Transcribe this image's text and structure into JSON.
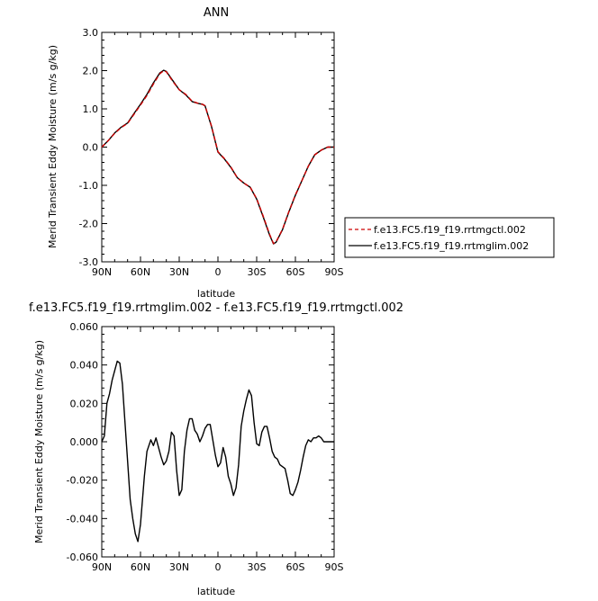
{
  "chart_data": [
    {
      "type": "line",
      "title": "ANN",
      "xlabel": "latitude",
      "ylabel": "Merid Transient Eddy Moisture  (m/s g/kg)",
      "x_ticks": [
        "90N",
        "60N",
        "30N",
        "0",
        "30S",
        "60S",
        "90S"
      ],
      "y_ticks": [
        "3.0",
        "2.0",
        "1.0",
        "0.0",
        "-1.0",
        "-2.0",
        "-3.0"
      ],
      "xlim": [
        90,
        -90
      ],
      "ylim": [
        -3.0,
        3.0
      ],
      "legend_position": "right",
      "x": [
        90,
        85,
        80,
        75,
        70,
        65,
        60,
        55,
        50,
        45,
        42,
        40,
        35,
        30,
        25,
        20,
        15,
        12,
        10,
        5,
        0,
        -5,
        -10,
        -15,
        -20,
        -25,
        -30,
        -35,
        -40,
        -43,
        -45,
        -50,
        -55,
        -60,
        -65,
        -70,
        -75,
        -80,
        -85,
        -90
      ],
      "series": [
        {
          "name": "f.e13.FC5.f19_f19.rrtmgctl.002",
          "color": "#cc0000",
          "dash": "dashed",
          "values": [
            0.0,
            0.17,
            0.36,
            0.51,
            0.62,
            0.86,
            1.1,
            1.35,
            1.65,
            1.92,
            2.0,
            1.97,
            1.72,
            1.5,
            1.38,
            1.2,
            1.14,
            1.12,
            1.08,
            0.55,
            -0.12,
            -0.3,
            -0.52,
            -0.8,
            -0.94,
            -1.05,
            -1.35,
            -1.8,
            -2.28,
            -2.52,
            -2.48,
            -2.15,
            -1.68,
            -1.25,
            -0.88,
            -0.5,
            -0.2,
            -0.08,
            0.0,
            0.0
          ]
        },
        {
          "name": "f.e13.FC5.f19_f19.rrtmglim.002",
          "color": "#000000",
          "dash": "solid",
          "values": [
            0.0,
            0.17,
            0.37,
            0.52,
            0.63,
            0.88,
            1.12,
            1.38,
            1.68,
            1.94,
            2.01,
            1.98,
            1.74,
            1.5,
            1.37,
            1.19,
            1.14,
            1.12,
            1.08,
            0.54,
            -0.13,
            -0.31,
            -0.53,
            -0.8,
            -0.94,
            -1.05,
            -1.36,
            -1.82,
            -2.3,
            -2.53,
            -2.49,
            -2.16,
            -1.69,
            -1.26,
            -0.88,
            -0.5,
            -0.2,
            -0.08,
            0.0,
            0.0
          ]
        }
      ]
    },
    {
      "type": "line",
      "title": "f.e13.FC5.f19_f19.rrtmglim.002 - f.e13.FC5.f19_f19.rrtmgctl.002",
      "xlabel": "latitude",
      "ylabel": "Merid Transient Eddy Moisture  (m/s g/kg)",
      "x_ticks": [
        "90N",
        "60N",
        "30N",
        "0",
        "30S",
        "60S",
        "90S"
      ],
      "y_ticks": [
        "0.060",
        "0.040",
        "0.020",
        "0.000",
        "-0.020",
        "-0.040",
        "-0.060"
      ],
      "xlim": [
        90,
        -90
      ],
      "ylim": [
        -0.06,
        0.06
      ],
      "x": [
        90,
        88,
        86,
        84,
        82,
        80,
        78,
        76,
        74,
        72,
        70,
        68,
        66,
        64,
        62,
        60,
        57,
        55,
        52,
        50,
        48,
        46,
        44,
        42,
        40,
        38,
        36,
        34,
        32,
        30,
        28,
        26,
        24,
        22,
        20,
        18,
        16,
        14,
        12,
        10,
        8,
        6,
        4,
        2,
        0,
        -2,
        -4,
        -6,
        -8,
        -10,
        -12,
        -14,
        -16,
        -18,
        -20,
        -22,
        -24,
        -26,
        -28,
        -30,
        -32,
        -34,
        -36,
        -38,
        -40,
        -42,
        -44,
        -46,
        -48,
        -50,
        -52,
        -54,
        -56,
        -58,
        -60,
        -62,
        -64,
        -66,
        -68,
        -70,
        -72,
        -74,
        -76,
        -78,
        -80,
        -82,
        -84,
        -86,
        -88,
        -90
      ],
      "series": [
        {
          "name": "",
          "color": "#000000",
          "dash": "solid",
          "values": [
            0.0,
            0.003,
            0.02,
            0.025,
            0.032,
            0.037,
            0.042,
            0.041,
            0.03,
            0.01,
            -0.01,
            -0.03,
            -0.04,
            -0.048,
            -0.052,
            -0.043,
            -0.018,
            -0.005,
            0.001,
            -0.002,
            0.002,
            -0.003,
            -0.008,
            -0.012,
            -0.01,
            -0.005,
            0.005,
            0.003,
            -0.015,
            -0.028,
            -0.025,
            -0.005,
            0.006,
            0.012,
            0.012,
            0.006,
            0.004,
            0.0,
            0.003,
            0.007,
            0.009,
            0.009,
            0.001,
            -0.007,
            -0.013,
            -0.011,
            -0.003,
            -0.008,
            -0.018,
            -0.022,
            -0.028,
            -0.024,
            -0.012,
            0.008,
            0.016,
            0.022,
            0.027,
            0.024,
            0.01,
            -0.001,
            -0.002,
            0.005,
            0.008,
            0.008,
            0.002,
            -0.005,
            -0.008,
            -0.009,
            -0.012,
            -0.013,
            -0.014,
            -0.02,
            -0.027,
            -0.028,
            -0.025,
            -0.021,
            -0.015,
            -0.008,
            -0.002,
            0.001,
            0.0,
            0.002,
            0.002,
            0.003,
            0.002,
            0.0,
            0.0,
            0.0,
            0.0,
            0.0
          ]
        }
      ]
    }
  ]
}
